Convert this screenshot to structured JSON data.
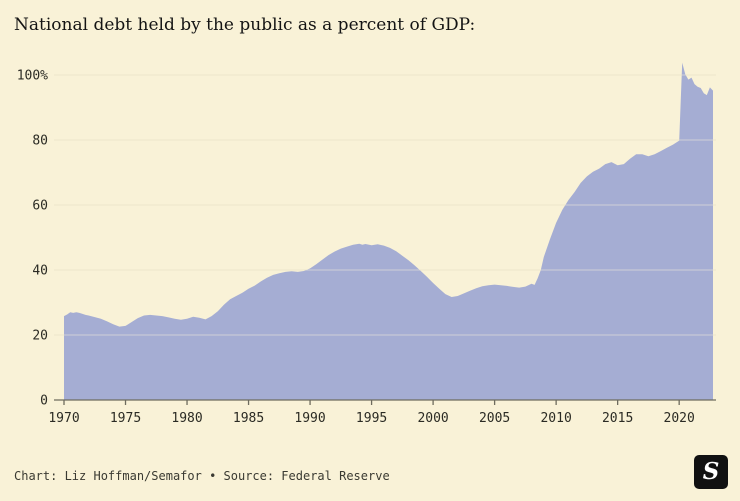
{
  "page": {
    "title": "National debt held by the public as a percent of GDP:",
    "footer_credit": "Chart: Liz Hoffman/Semafor • Source: Federal Reserve",
    "logo_letter": "S"
  },
  "colors": {
    "background": "#f9f2d7",
    "area_fill": "#a5add3",
    "grid_line": "#e0d8ba",
    "grid_line_over_area": "rgba(250,243,219,0.5)",
    "baseline": "#6e6c5e",
    "tick_text": "#2b2b24"
  },
  "chart_data": {
    "type": "area",
    "title": "National debt held by the public as a percent of GDP:",
    "series_name": "Debt held by the public (% of GDP)",
    "x_range": [
      1970,
      2022.75
    ],
    "ylim": [
      0,
      105
    ],
    "yticks": [
      0,
      20,
      40,
      60,
      80,
      100
    ],
    "ytick_labels": [
      "0",
      "20",
      "40",
      "60",
      "80",
      "100%"
    ],
    "xticks": [
      1970,
      1975,
      1980,
      1985,
      1990,
      1995,
      2000,
      2005,
      2010,
      2015,
      2020
    ],
    "grid": true,
    "legend": "none",
    "credit": "Liz Hoffman/Semafor",
    "source": "Federal Reserve",
    "points": [
      [
        1970,
        25.8
      ],
      [
        1970.25,
        26.3
      ],
      [
        1970.5,
        27.0
      ],
      [
        1970.75,
        26.8
      ],
      [
        1971,
        27.0
      ],
      [
        1971.25,
        26.8
      ],
      [
        1971.5,
        26.5
      ],
      [
        1971.75,
        26.2
      ],
      [
        1972,
        26.0
      ],
      [
        1972.5,
        25.5
      ],
      [
        1973,
        25.0
      ],
      [
        1973.5,
        24.2
      ],
      [
        1974,
        23.3
      ],
      [
        1974.5,
        22.6
      ],
      [
        1975,
        22.8
      ],
      [
        1975.5,
        24.0
      ],
      [
        1976,
        25.2
      ],
      [
        1976.5,
        26.0
      ],
      [
        1977,
        26.2
      ],
      [
        1977.5,
        26.0
      ],
      [
        1978,
        25.8
      ],
      [
        1978.5,
        25.4
      ],
      [
        1979,
        25.0
      ],
      [
        1979.5,
        24.7
      ],
      [
        1980,
        25.0
      ],
      [
        1980.5,
        25.6
      ],
      [
        1981,
        25.3
      ],
      [
        1981.5,
        24.8
      ],
      [
        1982,
        25.8
      ],
      [
        1982.5,
        27.3
      ],
      [
        1983,
        29.3
      ],
      [
        1983.5,
        31.0
      ],
      [
        1984,
        32.0
      ],
      [
        1984.5,
        33.0
      ],
      [
        1985,
        34.2
      ],
      [
        1985.5,
        35.2
      ],
      [
        1986,
        36.5
      ],
      [
        1986.5,
        37.6
      ],
      [
        1987,
        38.5
      ],
      [
        1987.5,
        39.0
      ],
      [
        1988,
        39.4
      ],
      [
        1988.5,
        39.6
      ],
      [
        1989,
        39.4
      ],
      [
        1989.5,
        39.7
      ],
      [
        1990,
        40.5
      ],
      [
        1990.5,
        41.8
      ],
      [
        1991,
        43.2
      ],
      [
        1991.5,
        44.6
      ],
      [
        1992,
        45.7
      ],
      [
        1992.5,
        46.6
      ],
      [
        1993,
        47.2
      ],
      [
        1993.5,
        47.8
      ],
      [
        1994,
        48.1
      ],
      [
        1994.25,
        47.8
      ],
      [
        1994.5,
        48.0
      ],
      [
        1995,
        47.6
      ],
      [
        1995.5,
        47.9
      ],
      [
        1996,
        47.5
      ],
      [
        1996.5,
        46.8
      ],
      [
        1997,
        45.8
      ],
      [
        1997.5,
        44.4
      ],
      [
        1998,
        43.0
      ],
      [
        1998.5,
        41.4
      ],
      [
        1999,
        39.7
      ],
      [
        1999.5,
        37.9
      ],
      [
        2000,
        36.0
      ],
      [
        2000.5,
        34.2
      ],
      [
        2001,
        32.6
      ],
      [
        2001.5,
        31.7
      ],
      [
        2002,
        32.0
      ],
      [
        2002.5,
        32.8
      ],
      [
        2003,
        33.6
      ],
      [
        2003.5,
        34.4
      ],
      [
        2004,
        35.0
      ],
      [
        2004.5,
        35.3
      ],
      [
        2005,
        35.5
      ],
      [
        2005.5,
        35.3
      ],
      [
        2006,
        35.1
      ],
      [
        2006.5,
        34.8
      ],
      [
        2007,
        34.6
      ],
      [
        2007.5,
        34.9
      ],
      [
        2008,
        35.8
      ],
      [
        2008.25,
        35.4
      ],
      [
        2008.5,
        37.5
      ],
      [
        2008.75,
        40.0
      ],
      [
        2009,
        44.0
      ],
      [
        2009.5,
        49.5
      ],
      [
        2010,
        54.5
      ],
      [
        2010.5,
        58.5
      ],
      [
        2011,
        61.5
      ],
      [
        2011.5,
        64.0
      ],
      [
        2012,
        66.8
      ],
      [
        2012.5,
        68.8
      ],
      [
        2013,
        70.2
      ],
      [
        2013.5,
        71.2
      ],
      [
        2014,
        72.6
      ],
      [
        2014.5,
        73.2
      ],
      [
        2015,
        72.2
      ],
      [
        2015.5,
        72.6
      ],
      [
        2016,
        74.2
      ],
      [
        2016.5,
        75.6
      ],
      [
        2017,
        75.6
      ],
      [
        2017.5,
        75.0
      ],
      [
        2018,
        75.6
      ],
      [
        2018.5,
        76.6
      ],
      [
        2019,
        77.6
      ],
      [
        2019.5,
        78.6
      ],
      [
        2020,
        79.8
      ],
      [
        2020.25,
        103.8
      ],
      [
        2020.5,
        100.2
      ],
      [
        2020.75,
        98.6
      ],
      [
        2021,
        99.2
      ],
      [
        2021.25,
        97.2
      ],
      [
        2021.5,
        96.4
      ],
      [
        2021.75,
        96.0
      ],
      [
        2022,
        94.4
      ],
      [
        2022.25,
        93.8
      ],
      [
        2022.5,
        96.2
      ],
      [
        2022.75,
        95.2
      ]
    ]
  }
}
